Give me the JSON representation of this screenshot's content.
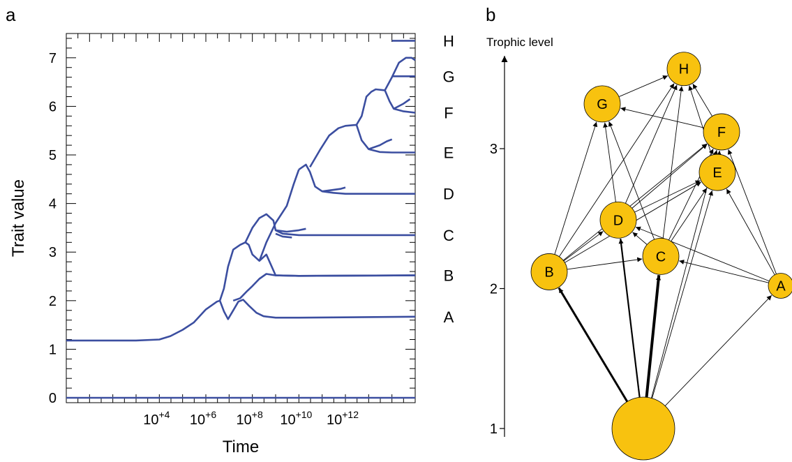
{
  "panels": {
    "a": "a",
    "b": "b"
  },
  "chart_data": [
    {
      "type": "line",
      "panel": "a",
      "xlabel": "Time",
      "ylabel": "Trait value",
      "xscale": "log",
      "xlim": [
        1,
        1000000000000000.0
      ],
      "ylim": [
        -0.1,
        7.5
      ],
      "xticklabels": [
        {
          "x": 10000.0,
          "base": "10",
          "exp": "+4"
        },
        {
          "x": 1000000.0,
          "base": "10",
          "exp": "+6"
        },
        {
          "x": 100000000.0,
          "base": "10",
          "exp": "+8"
        },
        {
          "x": 10000000000.0,
          "base": "10",
          "exp": "+10"
        },
        {
          "x": 1000000000000.0,
          "base": "10",
          "exp": "+12"
        }
      ],
      "yticks": [
        0,
        1,
        2,
        3,
        4,
        5,
        6,
        7
      ],
      "yticklabels": [
        "0",
        "1",
        "2",
        "3",
        "4",
        "5",
        "6",
        "7"
      ],
      "right_labels": [
        {
          "label": "H",
          "y": 7.35
        },
        {
          "label": "G",
          "y": 6.62
        },
        {
          "label": "F",
          "y": 5.87
        },
        {
          "label": "E",
          "y": 5.05
        },
        {
          "label": "D",
          "y": 4.2
        },
        {
          "label": "C",
          "y": 3.35
        },
        {
          "label": "B",
          "y": 2.52
        },
        {
          "label": "A",
          "y": 1.67
        }
      ],
      "color": "#3b4ea0",
      "series": [
        {
          "x": [
            1,
            1000000000000000.0
          ],
          "y": [
            0,
            0
          ]
        },
        {
          "x": [
            1,
            100.0,
            1000.0,
            10000.0,
            30000.0,
            100000.0,
            300000.0,
            1000000.0,
            3000000.0,
            4000000.0
          ],
          "y": [
            1.18,
            1.18,
            1.18,
            1.2,
            1.27,
            1.4,
            1.55,
            1.82,
            1.98,
            2.0
          ]
        },
        {
          "x": [
            4000000.0,
            6000000.0,
            9000000.0,
            15000000.0,
            25000000.0,
            40000000.0,
            70000000.0,
            150000000.0,
            300000000.0,
            1000000000.0,
            10000000000.0,
            1000000000000000.0
          ],
          "y": [
            2.0,
            1.78,
            1.62,
            1.8,
            1.98,
            2.02,
            1.9,
            1.75,
            1.68,
            1.65,
            1.65,
            1.67
          ]
        },
        {
          "x": [
            4000000.0,
            6000000.0,
            9000000.0,
            15000000.0,
            30000000.0,
            50000000.0,
            70000000.0,
            100000000.0,
            200000000.0,
            400000000.0,
            1000000000.0,
            10000000000.0,
            1000000000000000.0
          ],
          "y": [
            2.0,
            2.25,
            2.7,
            3.05,
            3.15,
            3.2,
            3.15,
            2.95,
            2.82,
            2.95,
            2.52,
            2.51,
            2.52
          ]
        },
        {
          "x": [
            15000000.0,
            30000000.0,
            60000000.0,
            100000000.0,
            200000000.0,
            400000000.0,
            1000000000.0,
            10000000000.0,
            1000000000000000.0
          ],
          "y": [
            2.0,
            2.05,
            2.2,
            2.3,
            2.45,
            2.55,
            2.52,
            2.51,
            2.52
          ]
        },
        {
          "x": [
            50000000.0,
            100000000.0,
            200000000.0,
            400000000.0,
            800000000.0,
            1000000000.0,
            2000000000.0,
            10000000000.0,
            1000000000000000.0
          ],
          "y": [
            3.2,
            3.5,
            3.7,
            3.78,
            3.65,
            3.45,
            3.38,
            3.35,
            3.35
          ]
        },
        {
          "x": [
            1000000000.0,
            3000000000.0,
            10000000000.0,
            20000000000.0
          ],
          "y": [
            3.45,
            3.42,
            3.45,
            3.48
          ]
        },
        {
          "x": [
            1000000000.0,
            2000000000.0,
            5000000000.0
          ],
          "y": [
            3.38,
            3.32,
            3.3
          ]
        },
        {
          "x": [
            200000000.0,
            400000000.0,
            1000000000.0,
            3000000000.0,
            6000000000.0,
            10000000000.0
          ],
          "y": [
            2.82,
            3.2,
            3.6,
            3.95,
            4.4,
            4.7
          ]
        },
        {
          "x": [
            10000000000.0,
            20000000000.0,
            30000000000.0,
            50000000000.0,
            100000000000.0,
            300000000000.0,
            1000000000000.0,
            1000000000000000.0
          ],
          "y": [
            4.7,
            4.8,
            4.65,
            4.35,
            4.25,
            4.22,
            4.2,
            4.2
          ]
        },
        {
          "x": [
            100000000000.0,
            300000000000.0,
            600000000000.0,
            1000000000000.0
          ],
          "y": [
            4.25,
            4.28,
            4.3,
            4.33
          ]
        },
        {
          "x": [
            30000000000.0,
            80000000000.0,
            200000000000.0,
            500000000000.0,
            1000000000000.0,
            3000000000000.0
          ],
          "y": [
            4.75,
            5.1,
            5.4,
            5.55,
            5.6,
            5.62
          ]
        },
        {
          "x": [
            3000000000000.0,
            5000000000000.0,
            10000000000000.0,
            30000000000000.0,
            100000000000000.0,
            1000000000000000.0
          ],
          "y": [
            5.62,
            5.3,
            5.12,
            5.06,
            5.05,
            5.05
          ]
        },
        {
          "x": [
            10000000000000.0,
            30000000000000.0,
            60000000000000.0,
            100000000000000.0
          ],
          "y": [
            5.12,
            5.2,
            5.28,
            5.32
          ]
        },
        {
          "x": [
            3000000000000.0,
            5000000000000.0,
            8000000000000.0,
            13000000000000.0,
            20000000000000.0,
            50000000000000.0
          ],
          "y": [
            5.62,
            5.8,
            6.2,
            6.3,
            6.35,
            6.33
          ]
        },
        {
          "x": [
            50000000000000.0,
            80000000000000.0,
            120000000000000.0,
            300000000000000.0,
            1000000000000000.0
          ],
          "y": [
            6.33,
            6.1,
            5.95,
            5.9,
            5.87
          ]
        },
        {
          "x": [
            120000000000000.0,
            300000000000000.0,
            600000000000000.0
          ],
          "y": [
            5.95,
            6.05,
            6.15
          ]
        },
        {
          "x": [
            50000000000000.0,
            100000000000000.0,
            200000000000000.0,
            400000000000000.0,
            700000000000000.0,
            1000000000000000.0
          ],
          "y": [
            6.33,
            6.6,
            6.9,
            7.0,
            7.0,
            6.95
          ]
        },
        {
          "x": [
            1000000000000000.0
          ],
          "y": [
            6.62
          ]
        },
        {
          "x": [
            1000000000000000.0
          ],
          "y": [
            7.35
          ]
        }
      ]
    },
    {
      "type": "network",
      "panel": "b",
      "ylabel": "Trophic level",
      "ylim": [
        1,
        3.6
      ],
      "yticks": [
        1,
        2,
        3
      ],
      "yticklabels": [
        "1",
        "2",
        "3"
      ],
      "node_color": "#f8c20f",
      "nodes": [
        {
          "id": "R",
          "label": "",
          "trophic_level": 0.97
        },
        {
          "id": "A",
          "label": "A",
          "trophic_level": 2.02
        },
        {
          "id": "B",
          "label": "B",
          "trophic_level": 2.12
        },
        {
          "id": "C",
          "label": "C",
          "trophic_level": 2.23
        },
        {
          "id": "D",
          "label": "D",
          "trophic_level": 2.49
        },
        {
          "id": "E",
          "label": "E",
          "trophic_level": 2.83
        },
        {
          "id": "F",
          "label": "F",
          "trophic_level": 3.12
        },
        {
          "id": "G",
          "label": "G",
          "trophic_level": 3.32
        },
        {
          "id": "H",
          "label": "H",
          "trophic_level": 3.57
        }
      ],
      "edges": [
        {
          "from": "R",
          "to": "B"
        },
        {
          "from": "R",
          "to": "C"
        },
        {
          "from": "R",
          "to": "D"
        },
        {
          "from": "R",
          "to": "A"
        },
        {
          "from": "R",
          "to": "E"
        },
        {
          "from": "R",
          "to": "F"
        },
        {
          "from": "B",
          "to": "C"
        },
        {
          "from": "B",
          "to": "D"
        },
        {
          "from": "B",
          "to": "E"
        },
        {
          "from": "B",
          "to": "F"
        },
        {
          "from": "B",
          "to": "G"
        },
        {
          "from": "B",
          "to": "H"
        },
        {
          "from": "A",
          "to": "C"
        },
        {
          "from": "A",
          "to": "D"
        },
        {
          "from": "A",
          "to": "E"
        },
        {
          "from": "A",
          "to": "F"
        },
        {
          "from": "C",
          "to": "D"
        },
        {
          "from": "C",
          "to": "E"
        },
        {
          "from": "C",
          "to": "F"
        },
        {
          "from": "C",
          "to": "G"
        },
        {
          "from": "C",
          "to": "H"
        },
        {
          "from": "D",
          "to": "E"
        },
        {
          "from": "D",
          "to": "F"
        },
        {
          "from": "D",
          "to": "G"
        },
        {
          "from": "D",
          "to": "H"
        },
        {
          "from": "E",
          "to": "F"
        },
        {
          "from": "E",
          "to": "H"
        },
        {
          "from": "F",
          "to": "G"
        },
        {
          "from": "F",
          "to": "H"
        },
        {
          "from": "G",
          "to": "H"
        }
      ]
    }
  ]
}
